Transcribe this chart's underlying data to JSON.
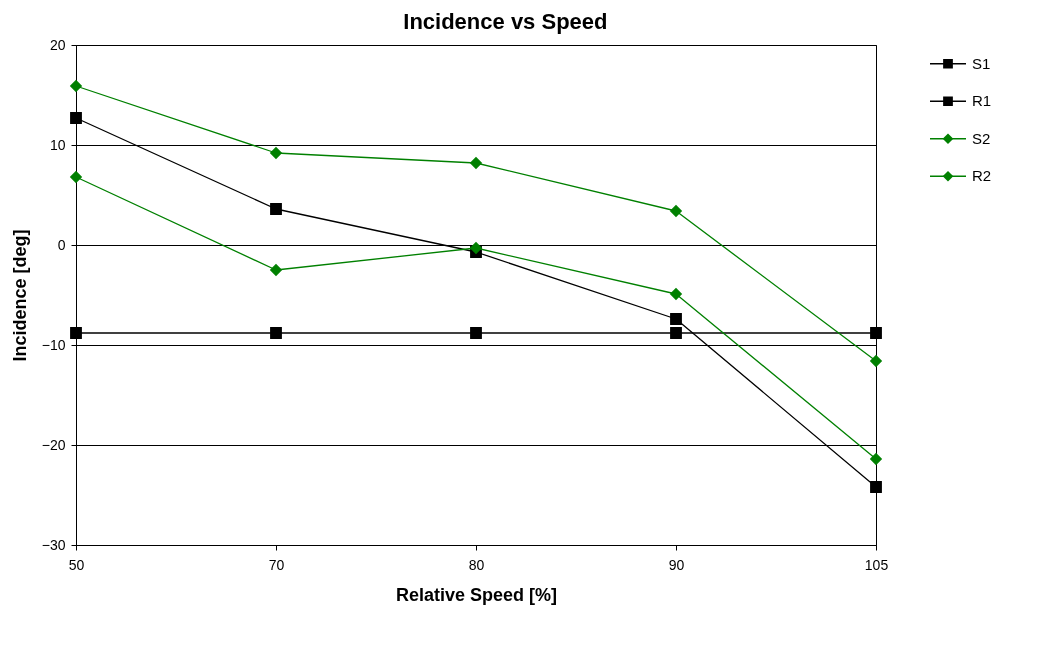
{
  "chart_data": {
    "type": "line",
    "title": "Incidence vs Speed",
    "xlabel": "Relative Speed [%]",
    "ylabel": "Incidence [deg]",
    "categories": [
      "50",
      "70",
      "80",
      "90",
      "105"
    ],
    "series": [
      {
        "name": "S1",
        "color": "#000000",
        "marker": "square",
        "values": [
          -8.8,
          -8.8,
          -8.8,
          -8.8,
          -8.8
        ]
      },
      {
        "name": "R1",
        "color": "#000000",
        "marker": "square",
        "values": [
          12.7,
          3.6,
          -0.7,
          -7.4,
          -24.2
        ]
      },
      {
        "name": "S2",
        "color": "#008000",
        "marker": "diamond",
        "values": [
          15.9,
          9.2,
          8.2,
          3.4,
          -11.6
        ]
      },
      {
        "name": "R2",
        "color": "#008000",
        "marker": "diamond",
        "values": [
          6.8,
          -2.5,
          -0.3,
          -4.9,
          -21.4
        ]
      }
    ],
    "ylim": [
      -30,
      20
    ],
    "yticks": [
      -30,
      -20,
      -10,
      0,
      10,
      20
    ],
    "grid": "y",
    "legend": "right",
    "line_style": "solid"
  }
}
